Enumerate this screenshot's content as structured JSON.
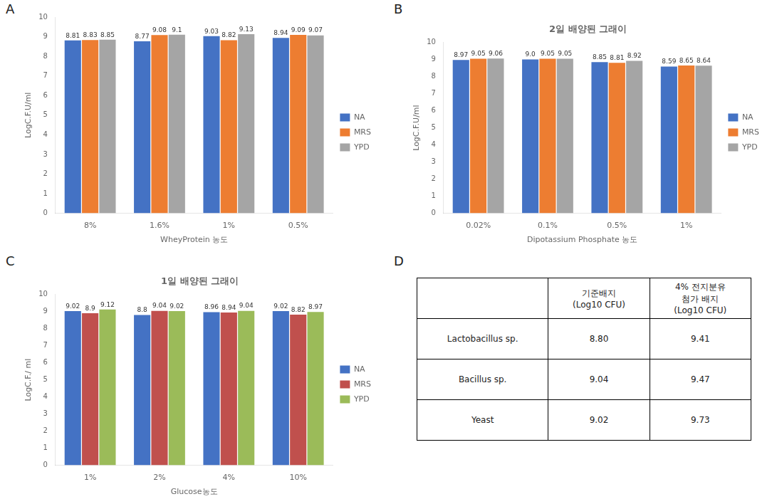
{
  "chart_data": [
    {
      "type": "bar",
      "annotations": [
        "A"
      ],
      "xlabel": "WheyProtein 농도",
      "ylabel": "LogC.F.U/ml",
      "categories": [
        "8%",
        "1.6%",
        "1%",
        "0.5%"
      ],
      "series": [
        {
          "name": "NA",
          "color": "#4472C4",
          "values": [
            8.81,
            8.77,
            9.03,
            8.94
          ]
        },
        {
          "name": "MRS",
          "color": "#ED7D31",
          "values": [
            8.83,
            9.08,
            8.82,
            9.09
          ]
        },
        {
          "name": "YPD",
          "color": "#A5A5A5",
          "values": [
            8.85,
            9.1,
            9.13,
            9.07
          ]
        }
      ],
      "ylim": [
        0,
        10
      ],
      "yticks": [
        0,
        1,
        2,
        3,
        4,
        5,
        6,
        7,
        8,
        9,
        10
      ],
      "grid": false,
      "legend": "right",
      "data_labels": true
    },
    {
      "type": "bar",
      "annotations": [
        "B"
      ],
      "title": "2일 배양된 그래이",
      "xlabel": "Dipotassium Phosphate 농도",
      "ylabel": "LogC.F.U/ml",
      "categories": [
        "0.02%",
        "0.1%",
        "0.5%",
        "1%"
      ],
      "series": [
        {
          "name": "NA",
          "color": "#4472C4",
          "values": [
            8.97,
            9.0,
            8.85,
            8.59
          ],
          "value_labels": [
            "8.97",
            "9.0",
            "8.85",
            "8.59"
          ]
        },
        {
          "name": "MRS",
          "color": "#ED7D31",
          "values": [
            9.05,
            9.05,
            8.81,
            8.65
          ]
        },
        {
          "name": "YPD",
          "color": "#A5A5A5",
          "values": [
            9.06,
            9.05,
            8.92,
            8.64
          ]
        }
      ],
      "ylim": [
        0,
        10
      ],
      "yticks": [
        0,
        1,
        2,
        3,
        4,
        5,
        6,
        7,
        8,
        9,
        10
      ],
      "grid": false,
      "legend": "right",
      "data_labels": true
    },
    {
      "type": "bar",
      "annotations": [
        "C"
      ],
      "title": "1일 배양된 그래이",
      "xlabel": "Glucose농도",
      "ylabel": "LogC.F./ ml",
      "categories": [
        "1%",
        "2%",
        "4%",
        "10%"
      ],
      "series": [
        {
          "name": "NA",
          "color": "#4472C4",
          "values": [
            9.02,
            8.8,
            8.96,
            9.02
          ]
        },
        {
          "name": "MRS",
          "color": "#C0504D",
          "values": [
            8.9,
            9.04,
            8.94,
            8.82
          ]
        },
        {
          "name": "YPD",
          "color": "#9BBB59",
          "values": [
            9.12,
            9.02,
            9.04,
            8.97
          ]
        }
      ],
      "ylim": [
        0,
        10
      ],
      "yticks": [
        0,
        1,
        2,
        3,
        4,
        5,
        6,
        7,
        8,
        9,
        10
      ],
      "grid": false,
      "legend": "right",
      "data_labels": true
    },
    {
      "type": "table",
      "annotations": [
        "D"
      ],
      "headers": [
        null,
        "기준배지\n(Log10 CFU)",
        "4% 전지분유\n첨가 배지\n(Log10 CFU)"
      ],
      "rows": [
        [
          "Lactobacillus sp.",
          "8.80",
          "9.41"
        ],
        [
          "Bacillus sp.",
          "9.04",
          "9.47"
        ],
        [
          "Yeast",
          "9.02",
          "9.73"
        ]
      ]
    }
  ]
}
